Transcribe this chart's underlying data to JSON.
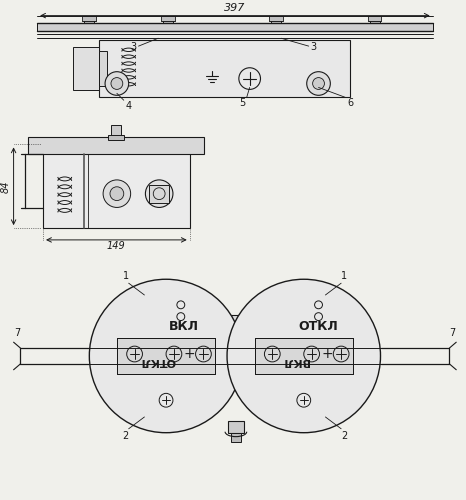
{
  "bg_color": "#f0f0eb",
  "line_color": "#1a1a1a",
  "fig_width": 4.66,
  "fig_height": 5.0,
  "dpi": 100,
  "dim_397": "397",
  "dim_84": "84",
  "dim_149": "149",
  "vkl": "ВКЛ",
  "otkl": "ОТКЛ"
}
